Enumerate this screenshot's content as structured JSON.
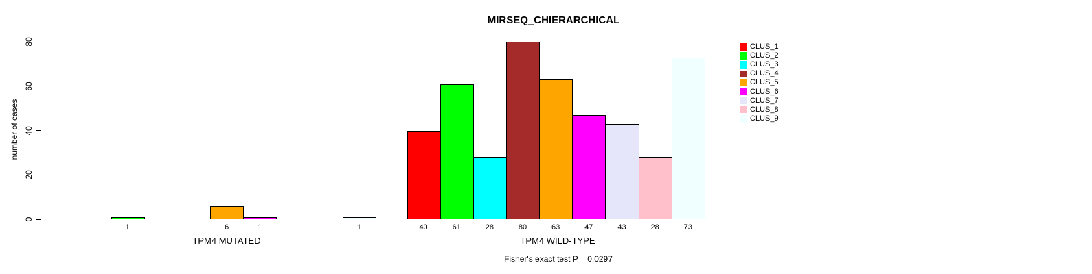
{
  "title": "MIRSEQ_CHIERARCHICAL",
  "footer": "Fisher's exact test P = 0.0297",
  "chart_data": {
    "type": "bar",
    "title": "MIRSEQ_CHIERARCHICAL",
    "ylabel": "number of cases",
    "xlabel": "",
    "ylim": [
      0,
      80
    ],
    "yticks": [
      0,
      20,
      40,
      60,
      80
    ],
    "grid": false,
    "legend_position": "right",
    "legend": [
      "CLUS_1",
      "CLUS_2",
      "CLUS_3",
      "CLUS_4",
      "CLUS_5",
      "CLUS_6",
      "CLUS_7",
      "CLUS_8",
      "CLUS_9"
    ],
    "colors": [
      "#FF0000",
      "#00FF00",
      "#00FFFF",
      "#A52A2A",
      "#FFA500",
      "#FF00FF",
      "#E6E6FA",
      "#FFC0CB",
      "#F0FFFF"
    ],
    "bar_border_color": "#000000",
    "groups": [
      {
        "label": "TPM4 MUTATED",
        "values": [
          0,
          1,
          0,
          0,
          6,
          1,
          0,
          0,
          1
        ]
      },
      {
        "label": "TPM4 WILD-TYPE",
        "values": [
          40,
          61,
          28,
          80,
          63,
          47,
          43,
          28,
          73
        ]
      }
    ],
    "annotation": "Fisher's exact test P = 0.0297"
  }
}
